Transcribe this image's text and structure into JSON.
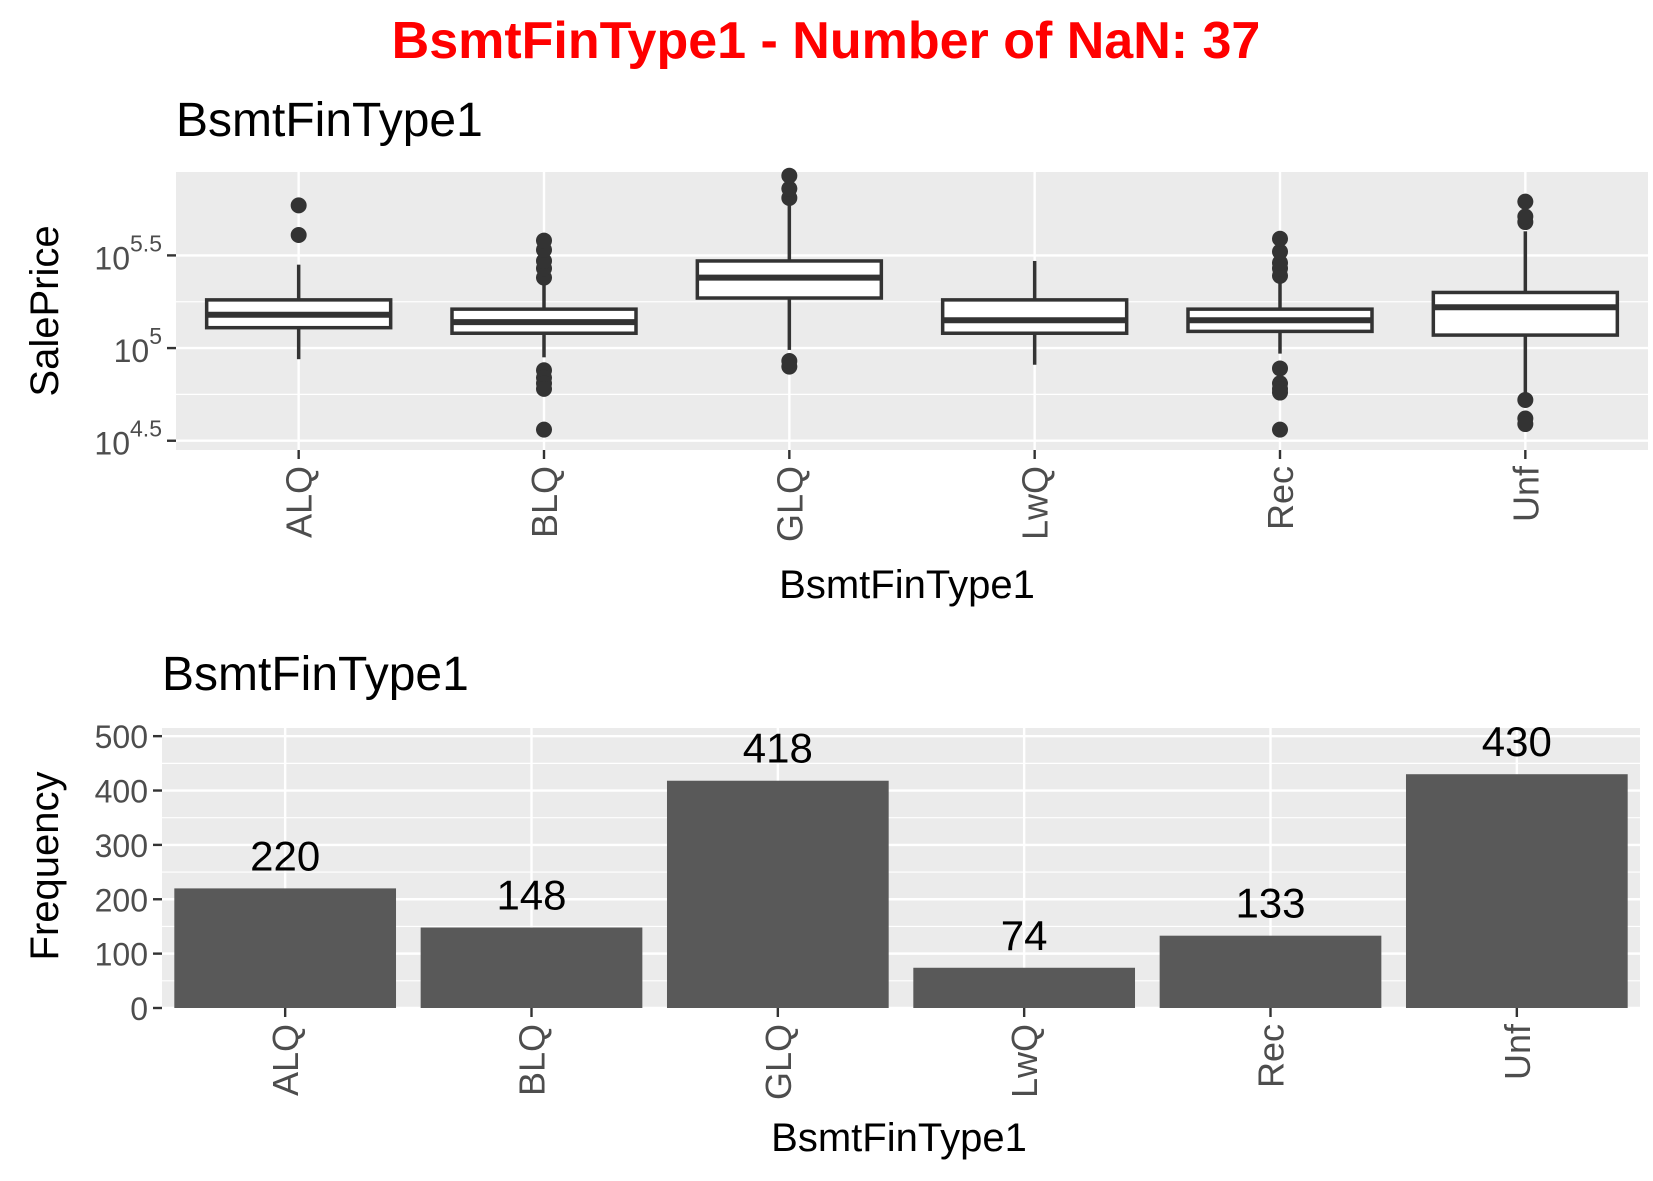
{
  "figure_title": "BsmtFinType1 - Number of NaN: 37",
  "colors": {
    "title": "#ff0000",
    "panel": "#ebebeb",
    "grid": "#ffffff",
    "bar": "#595959",
    "box_stroke": "#333333",
    "text": "#000000",
    "tick_text": "#4d4d4d"
  },
  "chart_data": [
    {
      "type": "box",
      "title": "BsmtFinType1",
      "xlabel": "BsmtFinType1",
      "ylabel": "SalePrice",
      "y_scale": "log10",
      "ylim_log10": [
        4.45,
        5.95
      ],
      "yticks": [
        {
          "value_log10": 4.5,
          "base": "10",
          "exp": "4.5"
        },
        {
          "value_log10": 5.0,
          "base": "10",
          "exp": "5"
        },
        {
          "value_log10": 5.5,
          "base": "10",
          "exp": "5.5"
        }
      ],
      "grid": true,
      "categories": [
        "ALQ",
        "BLQ",
        "GLQ",
        "LwQ",
        "Rec",
        "Unf"
      ],
      "boxes": [
        {
          "category": "ALQ",
          "whisker_low": 4.94,
          "q1": 5.11,
          "median": 5.18,
          "q3": 5.26,
          "whisker_high": 5.45,
          "outliers": [
            5.61,
            5.77
          ]
        },
        {
          "category": "BLQ",
          "whisker_low": 4.95,
          "q1": 5.08,
          "median": 5.14,
          "q3": 5.21,
          "whisker_high": 5.34,
          "outliers": [
            4.88,
            4.84,
            4.81,
            4.78,
            4.56,
            5.38,
            5.43,
            5.47,
            5.53,
            5.58
          ]
        },
        {
          "category": "GLQ",
          "whisker_low": 4.99,
          "q1": 5.27,
          "median": 5.38,
          "q3": 5.47,
          "whisker_high": 5.79,
          "outliers": [
            4.9,
            4.93,
            5.81,
            5.86,
            5.93
          ]
        },
        {
          "category": "LwQ",
          "whisker_low": 4.91,
          "q1": 5.08,
          "median": 5.15,
          "q3": 5.26,
          "whisker_high": 5.47,
          "outliers": []
        },
        {
          "category": "Rec",
          "whisker_low": 4.97,
          "q1": 5.09,
          "median": 5.15,
          "q3": 5.21,
          "whisker_high": 5.35,
          "outliers": [
            4.89,
            4.81,
            4.78,
            4.76,
            4.56,
            5.39,
            5.43,
            5.46,
            5.52,
            5.59
          ]
        },
        {
          "category": "Unf",
          "whisker_low": 4.74,
          "q1": 5.07,
          "median": 5.22,
          "q3": 5.3,
          "whisker_high": 5.63,
          "outliers": [
            4.72,
            4.62,
            4.59,
            5.68,
            5.71,
            5.79
          ]
        }
      ]
    },
    {
      "type": "bar",
      "title": "BsmtFinType1",
      "xlabel": "BsmtFinType1",
      "ylabel": "Frequency",
      "ylim": [
        0,
        515
      ],
      "yticks": [
        0,
        100,
        200,
        300,
        400,
        500
      ],
      "grid": true,
      "categories": [
        "ALQ",
        "BLQ",
        "GLQ",
        "LwQ",
        "Rec",
        "Unf"
      ],
      "values": [
        220,
        148,
        418,
        74,
        133,
        430
      ],
      "data_labels": [
        "220",
        "148",
        "418",
        "74",
        "133",
        "430"
      ]
    }
  ]
}
